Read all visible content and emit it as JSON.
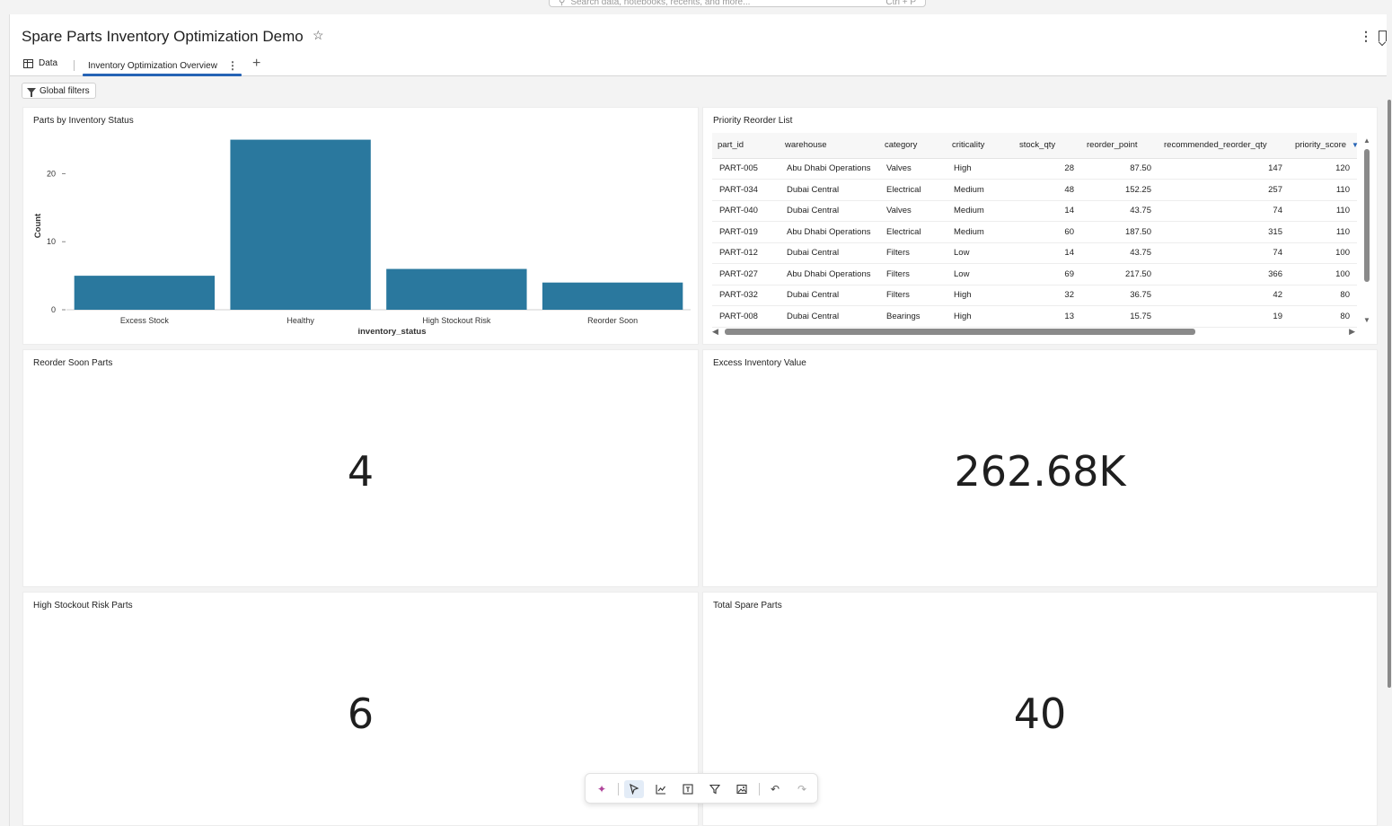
{
  "search": {
    "placeholder": "Search data, notebooks, recents, and more...",
    "shortcut": "Ctrl + P"
  },
  "header": {
    "title": "Spare Parts Inventory Optimization Demo",
    "tabs": [
      {
        "label": "Data",
        "icon": "table-icon"
      },
      {
        "label": "Inventory Optimization Overview",
        "active": true
      }
    ],
    "add_tab": "+",
    "filters_label": "Global filters"
  },
  "widgets": {
    "bar_chart": {
      "title": "Parts by Inventory Status"
    },
    "reorder_list": {
      "title": "Priority Reorder List",
      "columns": [
        "part_id",
        "warehouse",
        "category",
        "criticality",
        "stock_qty",
        "reorder_point",
        "recommended_reorder_qty",
        "priority_score"
      ],
      "rows": [
        [
          "PART-005",
          "Abu Dhabi Operations",
          "Valves",
          "High",
          "28",
          "87.50",
          "147",
          "120"
        ],
        [
          "PART-034",
          "Dubai Central",
          "Electrical",
          "Medium",
          "48",
          "152.25",
          "257",
          "110"
        ],
        [
          "PART-040",
          "Dubai Central",
          "Valves",
          "Medium",
          "14",
          "43.75",
          "74",
          "110"
        ],
        [
          "PART-019",
          "Abu Dhabi Operations",
          "Electrical",
          "Medium",
          "60",
          "187.50",
          "315",
          "110"
        ],
        [
          "PART-012",
          "Dubai Central",
          "Filters",
          "Low",
          "14",
          "43.75",
          "74",
          "100"
        ],
        [
          "PART-027",
          "Abu Dhabi Operations",
          "Filters",
          "Low",
          "69",
          "217.50",
          "366",
          "100"
        ],
        [
          "PART-032",
          "Dubai Central",
          "Filters",
          "High",
          "32",
          "36.75",
          "42",
          "80"
        ],
        [
          "PART-008",
          "Dubai Central",
          "Bearings",
          "High",
          "13",
          "15.75",
          "19",
          "80"
        ]
      ]
    },
    "kpi_reorder_soon": {
      "title": "Reorder Soon Parts",
      "value": "4"
    },
    "kpi_excess_value": {
      "title": "Excess Inventory Value",
      "value": "262.68K"
    },
    "kpi_stockout": {
      "title": "High Stockout Risk Parts",
      "value": "6"
    },
    "kpi_total": {
      "title": "Total Spare Parts",
      "value": "40"
    }
  },
  "chart_data": {
    "type": "bar",
    "categories": [
      "Excess Stock",
      "Healthy",
      "High Stockout Risk",
      "Reorder Soon"
    ],
    "values": [
      5,
      25,
      6,
      4
    ],
    "xlabel": "inventory_status",
    "ylabel": "Count",
    "yticks": [
      0,
      10,
      20
    ],
    "ylim": [
      0,
      26
    ],
    "grid": false,
    "color": "#2a789e"
  },
  "toolbar": {
    "items": [
      "sparkle-icon",
      "pointer-icon",
      "line-chart-icon",
      "text-box-icon",
      "filter-icon",
      "image-icon",
      "undo-icon",
      "redo-icon"
    ]
  },
  "colors": {
    "accent": "#2563b5",
    "bar": "#2a789e"
  }
}
